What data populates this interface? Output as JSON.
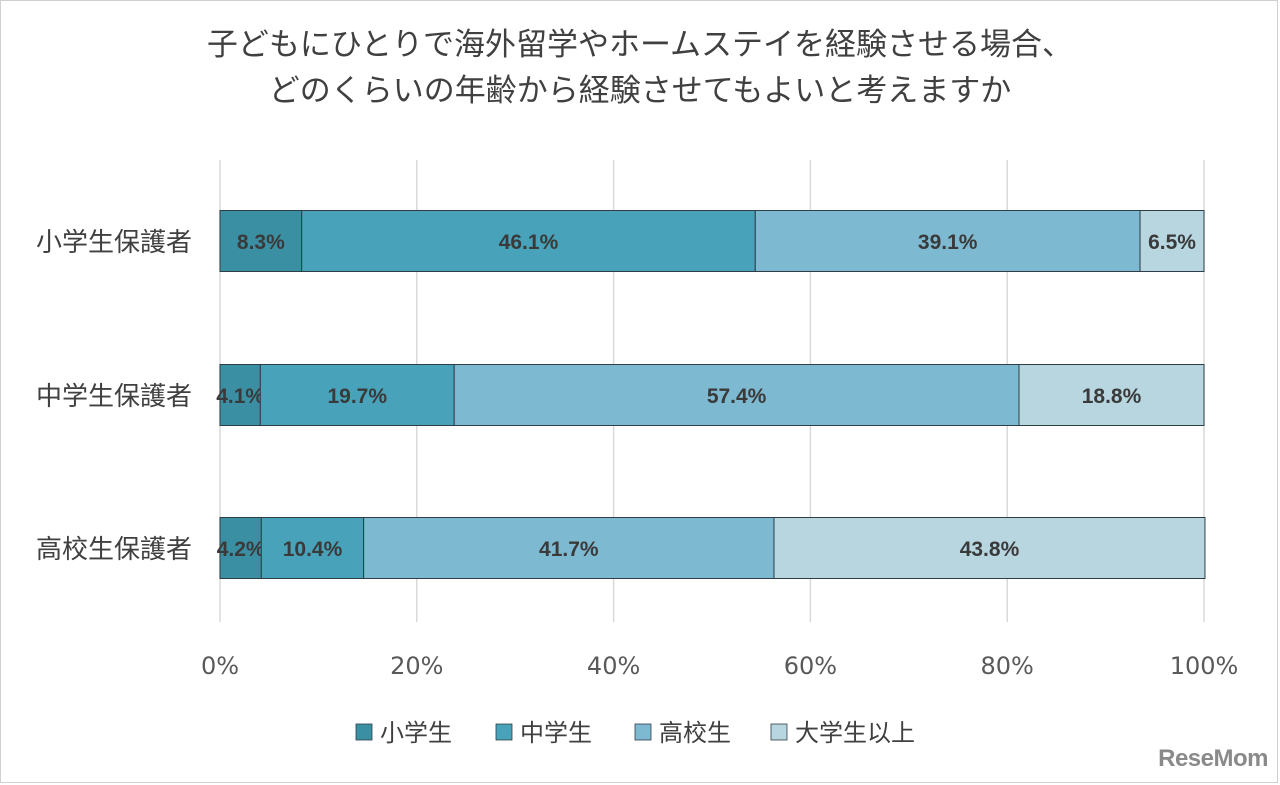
{
  "chart_data": {
    "type": "bar",
    "orientation": "horizontal",
    "stacked": true,
    "title_lines": [
      "子どもにひとりで海外留学やホームステイを経験させる場合、",
      "どのくらいの年齢から経験させてもよいと考えますか"
    ],
    "categories": [
      "小学生保護者",
      "中学生保護者",
      "高校生保護者"
    ],
    "series": [
      {
        "name": "小学生",
        "color": "#3b8fa3",
        "values": [
          8.3,
          4.1,
          4.2
        ]
      },
      {
        "name": "中学生",
        "color": "#48a2ba",
        "values": [
          46.1,
          19.7,
          10.4
        ]
      },
      {
        "name": "高校生",
        "color": "#7db9d0",
        "values": [
          39.1,
          57.4,
          41.7
        ]
      },
      {
        "name": "大学生以上",
        "color": "#b7d6e0",
        "values": [
          6.5,
          18.8,
          43.8
        ]
      }
    ],
    "data_labels": [
      [
        "8.3%",
        "46.1%",
        "39.1%",
        "6.5%"
      ],
      [
        "4.1%",
        "19.7%",
        "57.4%",
        "18.8%"
      ],
      [
        "4.2%",
        "10.4%",
        "41.7%",
        "43.8%"
      ]
    ],
    "xlim": [
      0,
      100
    ],
    "x_ticks": [
      "0%",
      "20%",
      "40%",
      "60%",
      "80%",
      "100%"
    ],
    "grid": true,
    "legend_position": "bottom"
  },
  "watermark": "ReseMom"
}
